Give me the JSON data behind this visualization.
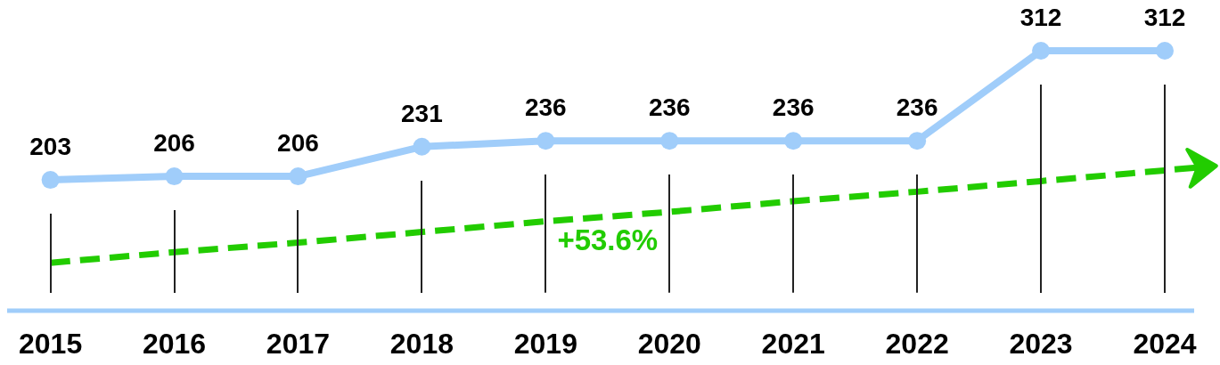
{
  "chart_data": {
    "type": "line",
    "categories": [
      "2015",
      "2016",
      "2017",
      "2018",
      "2019",
      "2020",
      "2021",
      "2022",
      "2023",
      "2024"
    ],
    "series": [
      {
        "color": "#a0cdfa",
        "marker": "circle",
        "values": [
          203,
          206,
          206,
          231,
          236,
          236,
          236,
          236,
          312,
          312
        ],
        "value_labels": [
          "203",
          "206",
          "206",
          "231",
          "236",
          "236",
          "236",
          "236",
          "312",
          "312"
        ]
      },
      {
        "type": "line",
        "color": "#22cc00",
        "line_style": "dashed",
        "marker": "none",
        "values": [
          133,
          142,
          150,
          159,
          168,
          176,
          185,
          193,
          202,
          211
        ]
      }
    ],
    "tick_labels": "x",
    "grid": "x",
    "legend": false,
    "annotations": [
      "+53.6%"
    ]
  }
}
